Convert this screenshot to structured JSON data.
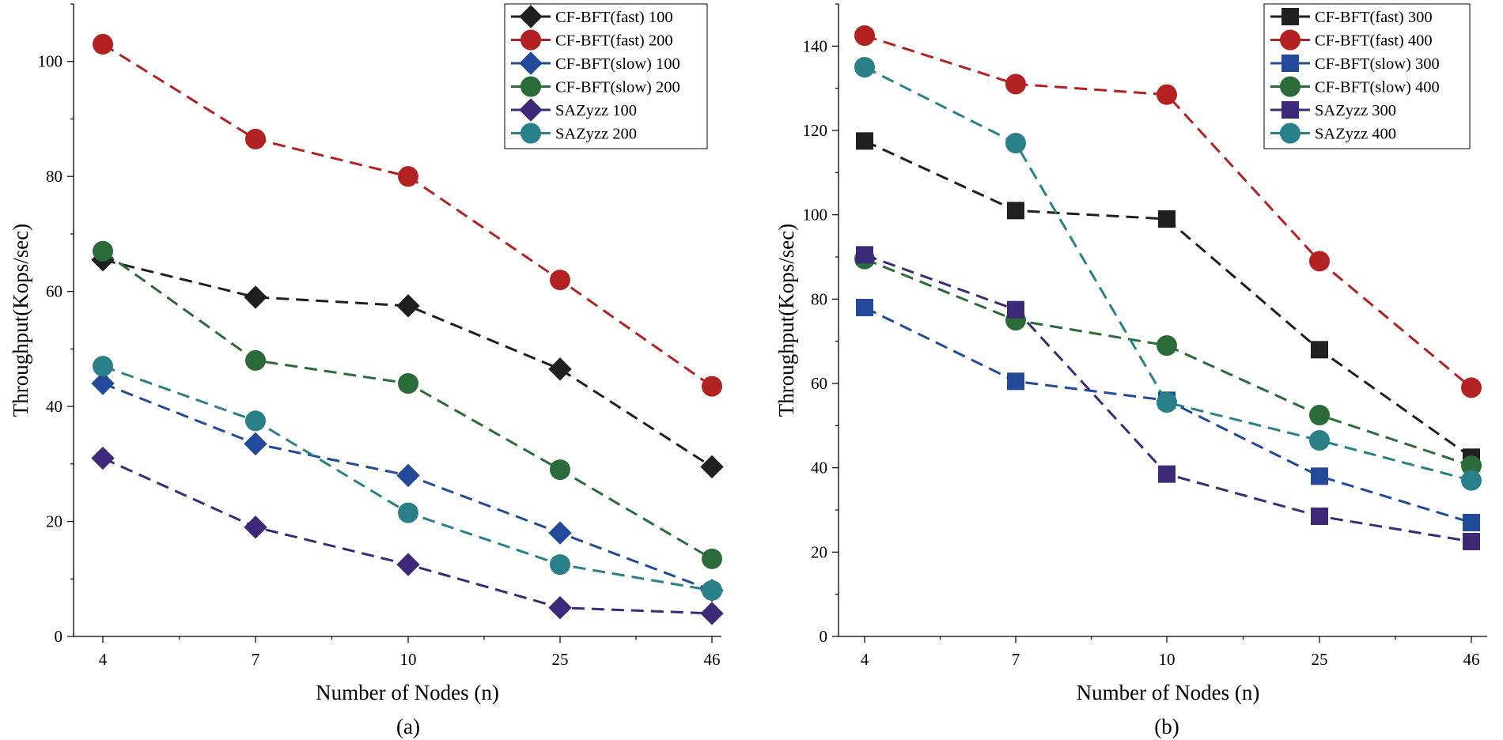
{
  "chart_data": [
    {
      "type": "line",
      "panel_label": "(a)",
      "xlabel": "Number of Nodes (n)",
      "ylabel": "Throughput(Kops/sec)",
      "categories": [
        "4",
        "7",
        "10",
        "25",
        "46"
      ],
      "ylim": [
        0,
        110
      ],
      "yticks": [
        0,
        20,
        40,
        60,
        80,
        100
      ],
      "legend_position": "top-right",
      "series": [
        {
          "name": "CF-BFT(fast) 100",
          "color": "#1f1f1f",
          "marker": "diamond",
          "values": [
            65.5,
            59,
            57.5,
            46.5,
            29.5
          ]
        },
        {
          "name": "CF-BFT(fast) 200",
          "color": "#b22222",
          "marker": "circle",
          "values": [
            103,
            86.5,
            80,
            62,
            43.5
          ]
        },
        {
          "name": "CF-BFT(slow) 100",
          "color": "#234a9a",
          "marker": "diamond",
          "values": [
            44,
            33.5,
            28,
            18,
            8
          ]
        },
        {
          "name": "CF-BFT(slow) 200",
          "color": "#2b6b3a",
          "marker": "circle",
          "values": [
            67,
            48,
            44,
            29,
            13.5
          ]
        },
        {
          "name": "SAZyzz 100",
          "color": "#3c2a78",
          "marker": "diamond",
          "values": [
            31,
            19,
            12.5,
            5,
            4
          ]
        },
        {
          "name": "SAZyzz 200",
          "color": "#2a8088",
          "marker": "circle",
          "values": [
            47,
            37.5,
            21.5,
            12.5,
            8
          ]
        }
      ]
    },
    {
      "type": "line",
      "panel_label": "(b)",
      "xlabel": "Number of Nodes (n)",
      "ylabel": "Throughput(Kops/sec)",
      "categories": [
        "4",
        "7",
        "10",
        "25",
        "46"
      ],
      "ylim": [
        0,
        150
      ],
      "yticks": [
        0,
        20,
        40,
        60,
        80,
        100,
        120,
        140
      ],
      "legend_position": "top-right",
      "series": [
        {
          "name": "CF-BFT(fast) 300",
          "color": "#1f1f1f",
          "marker": "square",
          "values": [
            117.5,
            101,
            99,
            68,
            42.5
          ]
        },
        {
          "name": "CF-BFT(fast) 400",
          "color": "#b22222",
          "marker": "circle",
          "values": [
            142.5,
            131,
            128.5,
            89,
            59
          ]
        },
        {
          "name": "CF-BFT(slow) 300",
          "color": "#234a9a",
          "marker": "square",
          "values": [
            78,
            60.5,
            56,
            38,
            27
          ]
        },
        {
          "name": "CF-BFT(slow) 400",
          "color": "#2b6b3a",
          "marker": "circle",
          "values": [
            89.5,
            75,
            69,
            52.5,
            40.5
          ]
        },
        {
          "name": "SAZyzz 300",
          "color": "#3c2a78",
          "marker": "square",
          "values": [
            90.5,
            77.5,
            38.5,
            28.5,
            22.5
          ]
        },
        {
          "name": "SAZyzz 400",
          "color": "#2a8088",
          "marker": "circle",
          "values": [
            135,
            117,
            55.5,
            46.5,
            37
          ]
        }
      ]
    }
  ]
}
